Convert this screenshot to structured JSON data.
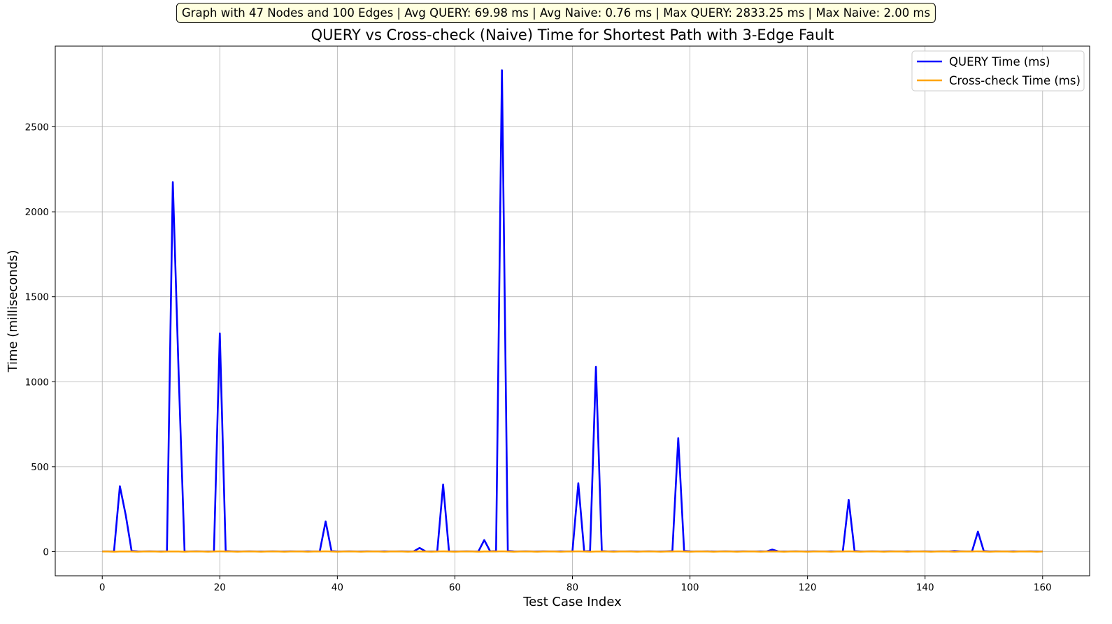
{
  "info_box": "Graph with 47 Nodes and 100 Edges | Avg QUERY: 69.98 ms | Avg Naive: 0.76 ms | Max QUERY: 2833.25 ms | Max Naive: 2.00 ms",
  "chart_data": {
    "type": "line",
    "title": "QUERY vs Cross-check (Naive) Time for Shortest Path with  3-Edge Fault",
    "xlabel": "Test Case Index",
    "ylabel": "Time (milliseconds)",
    "xlim": [
      -8,
      168
    ],
    "ylim": [
      -142,
      2975
    ],
    "xticks": [
      0,
      20,
      40,
      60,
      80,
      100,
      120,
      140,
      160
    ],
    "yticks": [
      0,
      500,
      1000,
      1500,
      2000,
      2500
    ],
    "grid": true,
    "legend_position": "top-right",
    "series": [
      {
        "name": "QUERY Time (ms)",
        "color": "#0000ff",
        "x": [
          0,
          1,
          2,
          3,
          4,
          5,
          6,
          7,
          8,
          9,
          10,
          11,
          12,
          13,
          14,
          15,
          16,
          17,
          18,
          19,
          20,
          21,
          22,
          23,
          24,
          25,
          26,
          27,
          28,
          29,
          30,
          31,
          32,
          33,
          34,
          35,
          36,
          37,
          38,
          39,
          40,
          41,
          42,
          43,
          44,
          45,
          46,
          47,
          48,
          49,
          50,
          51,
          52,
          53,
          54,
          55,
          56,
          57,
          58,
          59,
          60,
          61,
          62,
          63,
          64,
          65,
          66,
          67,
          68,
          69,
          70,
          71,
          72,
          73,
          74,
          75,
          76,
          77,
          78,
          79,
          80,
          81,
          82,
          83,
          84,
          85,
          86,
          87,
          88,
          89,
          90,
          91,
          92,
          93,
          94,
          95,
          96,
          97,
          98,
          99,
          100,
          101,
          102,
          103,
          104,
          105,
          106,
          107,
          108,
          109,
          110,
          111,
          112,
          113,
          114,
          115,
          116,
          117,
          118,
          119,
          120,
          121,
          122,
          123,
          124,
          125,
          126,
          127,
          128,
          129,
          130,
          131,
          132,
          133,
          134,
          135,
          136,
          137,
          138,
          139,
          140,
          141,
          142,
          143,
          144,
          145,
          146,
          147,
          148,
          149,
          150,
          151,
          152,
          153,
          154,
          155,
          156,
          157,
          158,
          159,
          160
        ],
        "values": [
          1,
          1,
          1,
          385,
          215,
          4,
          2,
          1,
          2,
          1,
          1,
          2,
          2175,
          1040,
          2,
          1,
          2,
          1,
          1,
          2,
          1285,
          3,
          2,
          1,
          1,
          2,
          1,
          1,
          1,
          2,
          1,
          1,
          2,
          1,
          1,
          2,
          1,
          2,
          178,
          3,
          1,
          1,
          2,
          1,
          1,
          2,
          1,
          1,
          2,
          1,
          1,
          2,
          1,
          2,
          22,
          2,
          1,
          2,
          395,
          2,
          1,
          1,
          2,
          1,
          1,
          68,
          2,
          3,
          2833,
          4,
          2,
          1,
          2,
          1,
          1,
          2,
          1,
          1,
          2,
          1,
          1,
          403,
          2,
          3,
          1088,
          3,
          1,
          2,
          1,
          1,
          2,
          1,
          1,
          2,
          1,
          1,
          2,
          3,
          668,
          4,
          2,
          1,
          1,
          2,
          1,
          1,
          2,
          1,
          1,
          2,
          1,
          1,
          2,
          1,
          12,
          2,
          1,
          1,
          2,
          1,
          1,
          2,
          1,
          1,
          2,
          1,
          2,
          305,
          3,
          1,
          1,
          2,
          1,
          1,
          2,
          1,
          1,
          2,
          1,
          1,
          2,
          1,
          1,
          2,
          1,
          3,
          2,
          1,
          2,
          118,
          3,
          1,
          2,
          1,
          1,
          2,
          1,
          1,
          2,
          1,
          1
        ]
      },
      {
        "name": "Cross-check Time (ms)",
        "color": "#ffa500",
        "x": [
          0,
          1,
          2,
          3,
          4,
          5,
          6,
          7,
          8,
          9,
          10,
          11,
          12,
          13,
          14,
          15,
          16,
          17,
          18,
          19,
          20,
          21,
          22,
          23,
          24,
          25,
          26,
          27,
          28,
          29,
          30,
          31,
          32,
          33,
          34,
          35,
          36,
          37,
          38,
          39,
          40,
          41,
          42,
          43,
          44,
          45,
          46,
          47,
          48,
          49,
          50,
          51,
          52,
          53,
          54,
          55,
          56,
          57,
          58,
          59,
          60,
          61,
          62,
          63,
          64,
          65,
          66,
          67,
          68,
          69,
          70,
          71,
          72,
          73,
          74,
          75,
          76,
          77,
          78,
          79,
          80,
          81,
          82,
          83,
          84,
          85,
          86,
          87,
          88,
          89,
          90,
          91,
          92,
          93,
          94,
          95,
          96,
          97,
          98,
          99,
          100,
          101,
          102,
          103,
          104,
          105,
          106,
          107,
          108,
          109,
          110,
          111,
          112,
          113,
          114,
          115,
          116,
          117,
          118,
          119,
          120,
          121,
          122,
          123,
          124,
          125,
          126,
          127,
          128,
          129,
          130,
          131,
          132,
          133,
          134,
          135,
          136,
          137,
          138,
          139,
          140,
          141,
          142,
          143,
          144,
          145,
          146,
          147,
          148,
          149,
          150,
          151,
          152,
          153,
          154,
          155,
          156,
          157,
          158,
          159,
          160
        ],
        "values": [
          1,
          1,
          0,
          1,
          1,
          1,
          0,
          1,
          1,
          1,
          0,
          1,
          1,
          1,
          0,
          1,
          1,
          1,
          0,
          1,
          2,
          1,
          1,
          0,
          1,
          1,
          1,
          0,
          1,
          1,
          1,
          0,
          1,
          1,
          1,
          0,
          1,
          1,
          2,
          1,
          0,
          1,
          1,
          1,
          0,
          1,
          1,
          1,
          0,
          1,
          1,
          1,
          0,
          1,
          1,
          1,
          0,
          1,
          2,
          1,
          0,
          1,
          1,
          1,
          0,
          1,
          1,
          1,
          2,
          1,
          0,
          1,
          1,
          1,
          0,
          1,
          1,
          1,
          0,
          1,
          1,
          2,
          1,
          0,
          1,
          1,
          1,
          0,
          1,
          1,
          1,
          0,
          1,
          1,
          1,
          0,
          1,
          1,
          2,
          1,
          0,
          1,
          1,
          1,
          0,
          1,
          1,
          1,
          0,
          1,
          1,
          1,
          0,
          1,
          1,
          1,
          0,
          1,
          1,
          1,
          0,
          1,
          1,
          1,
          0,
          1,
          1,
          2,
          1,
          0,
          1,
          1,
          1,
          0,
          1,
          1,
          1,
          0,
          1,
          1,
          1,
          0,
          1,
          1,
          1,
          0,
          1,
          1,
          1,
          2,
          1,
          0,
          1,
          1,
          1,
          0,
          1,
          1,
          1,
          0,
          1
        ]
      }
    ]
  }
}
